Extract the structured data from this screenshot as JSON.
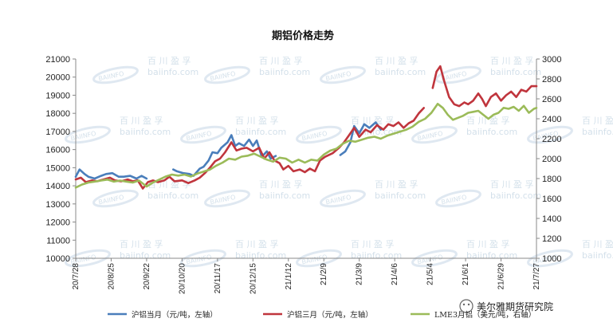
{
  "chart_data": {
    "type": "line",
    "title": "期铝价格走势",
    "y_left": {
      "ticks": [
        10000,
        11000,
        12000,
        13000,
        14000,
        15000,
        16000,
        17000,
        18000,
        19000,
        20000,
        21000
      ],
      "range": [
        10000,
        21000
      ]
    },
    "y_right": {
      "ticks": [
        1000,
        1200,
        1400,
        1600,
        1800,
        2000,
        2200,
        2400,
        2600,
        2800,
        3000
      ],
      "range": [
        1000,
        3000
      ]
    },
    "x_range": [
      "2020-07-28",
      "2021-07-27"
    ],
    "x_ticks": [
      {
        "date": "2020-07-28",
        "label": "20/7/28"
      },
      {
        "date": "2020-08-25",
        "label": "20/8/25"
      },
      {
        "date": "2020-09-22",
        "label": "20/9/22"
      },
      {
        "date": "2020-10-20",
        "label": "20/10/20"
      },
      {
        "date": "2020-11-17",
        "label": "20/11/17"
      },
      {
        "date": "2020-12-15",
        "label": "20/12/15"
      },
      {
        "date": "2021-01-12",
        "label": "21/1/12"
      },
      {
        "date": "2021-02-09",
        "label": "21/2/9"
      },
      {
        "date": "2021-03-09",
        "label": "21/3/9"
      },
      {
        "date": "2021-04-06",
        "label": "21/4/6"
      },
      {
        "date": "2021-05-04",
        "label": "21/5/4"
      },
      {
        "date": "2021-06-01",
        "label": "21/6/1"
      },
      {
        "date": "2021-06-29",
        "label": "21/6/29"
      },
      {
        "date": "2021-07-27",
        "label": "21/7/27"
      }
    ],
    "grid": false,
    "legend_position": "bottom",
    "series": [
      {
        "name": "沪铝当月（元/吨，左轴）",
        "axis": "left",
        "color": "#4a7ebb",
        "points": [
          [
            "2020-07-28",
            14500
          ],
          [
            "2020-07-31",
            14900
          ],
          [
            "2020-08-04",
            14650
          ],
          [
            "2020-08-07",
            14500
          ],
          [
            "2020-08-12",
            14400
          ],
          [
            "2020-08-17",
            14550
          ],
          [
            "2020-08-21",
            14650
          ],
          [
            "2020-08-26",
            14700
          ],
          [
            "2020-08-31",
            14500
          ],
          [
            "2020-09-04",
            14500
          ],
          [
            "2020-09-09",
            14550
          ],
          [
            "2020-09-14",
            14400
          ],
          [
            "2020-09-18",
            14550
          ],
          [
            "2020-09-22",
            14400
          ],
          null,
          [
            "2020-10-13",
            14900
          ],
          [
            "2020-10-16",
            14800
          ],
          [
            "2020-10-21",
            14700
          ],
          [
            "2020-10-26",
            14650
          ],
          [
            "2020-10-29",
            14550
          ],
          [
            "2020-11-03",
            14950
          ],
          [
            "2020-11-06",
            15050
          ],
          [
            "2020-11-10",
            15400
          ],
          [
            "2020-11-13",
            15850
          ],
          [
            "2020-11-17",
            15800
          ],
          [
            "2020-11-20",
            16100
          ],
          [
            "2020-11-25",
            16400
          ],
          [
            "2020-11-28",
            16800
          ],
          [
            "2020-12-01",
            16200
          ],
          [
            "2020-12-04",
            16350
          ],
          [
            "2020-12-08",
            16200
          ],
          [
            "2020-12-12",
            16550
          ],
          [
            "2020-12-15",
            16200
          ],
          [
            "2020-12-18",
            16500
          ],
          [
            "2020-12-22",
            15600
          ],
          [
            "2020-12-26",
            15900
          ],
          [
            "2020-12-29",
            15500
          ],
          [
            "2021-01-02",
            15650
          ],
          null,
          [
            "2021-02-22",
            15700
          ],
          [
            "2021-02-26",
            15900
          ],
          [
            "2021-03-02",
            16400
          ],
          [
            "2021-03-05",
            17300
          ],
          [
            "2021-03-09",
            16900
          ],
          [
            "2021-03-13",
            17400
          ],
          [
            "2021-03-17",
            17200
          ],
          [
            "2021-03-22",
            17500
          ],
          [
            "2021-03-26",
            17100
          ]
        ]
      },
      {
        "name": "沪铝三月（元/吨，左轴）",
        "axis": "left",
        "color": "#c0353d",
        "points": [
          [
            "2020-07-28",
            14350
          ],
          [
            "2020-08-01",
            14450
          ],
          [
            "2020-08-05",
            14200
          ],
          [
            "2020-08-10",
            14300
          ],
          [
            "2020-08-14",
            14250
          ],
          [
            "2020-08-19",
            14350
          ],
          [
            "2020-08-24",
            14450
          ],
          [
            "2020-08-28",
            14300
          ],
          [
            "2020-09-02",
            14250
          ],
          [
            "2020-09-07",
            14350
          ],
          [
            "2020-09-11",
            14250
          ],
          [
            "2020-09-15",
            14300
          ],
          [
            "2020-09-19",
            13850
          ],
          [
            "2020-09-23",
            14200
          ],
          [
            "2020-09-27",
            14300
          ],
          [
            "2020-10-01",
            14200
          ],
          [
            "2020-10-06",
            14300
          ],
          [
            "2020-10-10",
            14500
          ],
          [
            "2020-10-14",
            14250
          ],
          [
            "2020-10-20",
            14300
          ],
          [
            "2020-10-25",
            14150
          ],
          [
            "2020-10-30",
            14300
          ],
          [
            "2020-11-03",
            14450
          ],
          [
            "2020-11-07",
            14700
          ],
          [
            "2020-11-11",
            15000
          ],
          [
            "2020-11-15",
            15350
          ],
          [
            "2020-11-19",
            15500
          ],
          [
            "2020-11-23",
            15850
          ],
          [
            "2020-11-28",
            16400
          ],
          [
            "2020-12-02",
            15950
          ],
          [
            "2020-12-06",
            16050
          ],
          [
            "2020-12-10",
            16100
          ],
          [
            "2020-12-15",
            15900
          ],
          [
            "2020-12-20",
            16100
          ],
          [
            "2020-12-24",
            15500
          ],
          [
            "2020-12-28",
            15850
          ],
          [
            "2021-01-01",
            15400
          ],
          [
            "2021-01-05",
            15250
          ],
          [
            "2021-01-08",
            14900
          ],
          [
            "2021-01-12",
            15100
          ],
          [
            "2021-01-16",
            14800
          ],
          [
            "2021-01-21",
            14900
          ],
          [
            "2021-01-25",
            14750
          ],
          [
            "2021-01-29",
            14950
          ],
          [
            "2021-02-02",
            14800
          ],
          [
            "2021-02-06",
            15400
          ],
          [
            "2021-02-10",
            15600
          ],
          [
            "2021-02-16",
            15800
          ],
          [
            "2021-02-21",
            16100
          ],
          [
            "2021-02-25",
            16400
          ],
          [
            "2021-03-01",
            16800
          ],
          [
            "2021-03-05",
            17200
          ],
          [
            "2021-03-09",
            16700
          ],
          [
            "2021-03-14",
            17100
          ],
          [
            "2021-03-18",
            16950
          ],
          [
            "2021-03-23",
            17350
          ],
          [
            "2021-03-28",
            17100
          ],
          [
            "2021-04-01",
            17400
          ],
          [
            "2021-04-05",
            17300
          ],
          [
            "2021-04-09",
            17500
          ],
          [
            "2021-04-13",
            17200
          ],
          [
            "2021-04-17",
            17450
          ],
          [
            "2021-04-21",
            17600
          ],
          [
            "2021-04-25",
            18000
          ],
          [
            "2021-04-29",
            18300
          ],
          null,
          [
            "2021-05-06",
            19400
          ],
          [
            "2021-05-09",
            20300
          ],
          [
            "2021-05-12",
            20600
          ],
          [
            "2021-05-15",
            19800
          ],
          [
            "2021-05-19",
            18900
          ],
          [
            "2021-05-23",
            18500
          ],
          [
            "2021-05-27",
            18400
          ],
          [
            "2021-05-31",
            18600
          ],
          [
            "2021-06-03",
            18500
          ],
          [
            "2021-06-07",
            18700
          ],
          [
            "2021-06-11",
            19100
          ],
          [
            "2021-06-14",
            18800
          ],
          [
            "2021-06-17",
            18400
          ],
          [
            "2021-06-21",
            18900
          ],
          [
            "2021-06-25",
            19100
          ],
          [
            "2021-06-29",
            18700
          ],
          [
            "2021-07-03",
            19000
          ],
          [
            "2021-07-07",
            19200
          ],
          [
            "2021-07-11",
            18900
          ],
          [
            "2021-07-15",
            19300
          ],
          [
            "2021-07-19",
            19200
          ],
          [
            "2021-07-23",
            19500
          ],
          [
            "2021-07-27",
            19500
          ]
        ]
      },
      {
        "name": "LME3月铝（美元/吨，右轴）",
        "axis": "right",
        "color": "#9bbb59",
        "points": [
          [
            "2020-07-28",
            1710
          ],
          [
            "2020-08-02",
            1740
          ],
          [
            "2020-08-07",
            1760
          ],
          [
            "2020-08-12",
            1770
          ],
          [
            "2020-08-17",
            1780
          ],
          [
            "2020-08-22",
            1790
          ],
          [
            "2020-08-27",
            1770
          ],
          [
            "2020-09-01",
            1780
          ],
          [
            "2020-09-06",
            1770
          ],
          [
            "2020-09-11",
            1760
          ],
          [
            "2020-09-16",
            1780
          ],
          [
            "2020-09-22",
            1720
          ],
          [
            "2020-09-27",
            1760
          ],
          [
            "2020-10-02",
            1790
          ],
          [
            "2020-10-07",
            1820
          ],
          [
            "2020-10-12",
            1840
          ],
          [
            "2020-10-17",
            1830
          ],
          [
            "2020-10-22",
            1840
          ],
          [
            "2020-10-27",
            1820
          ],
          [
            "2020-11-01",
            1850
          ],
          [
            "2020-11-06",
            1870
          ],
          [
            "2020-11-11",
            1890
          ],
          [
            "2020-11-16",
            1930
          ],
          [
            "2020-11-21",
            1960
          ],
          [
            "2020-11-26",
            2000
          ],
          [
            "2020-12-01",
            1990
          ],
          [
            "2020-12-06",
            2020
          ],
          [
            "2020-12-11",
            2030
          ],
          [
            "2020-12-16",
            2050
          ],
          [
            "2020-12-21",
            2020
          ],
          [
            "2020-12-26",
            1990
          ],
          [
            "2020-12-31",
            1970
          ],
          [
            "2021-01-05",
            2010
          ],
          [
            "2021-01-10",
            2000
          ],
          [
            "2021-01-15",
            1960
          ],
          [
            "2021-01-20",
            1990
          ],
          [
            "2021-01-25",
            1960
          ],
          [
            "2021-01-30",
            1990
          ],
          [
            "2021-02-04",
            1980
          ],
          [
            "2021-02-09",
            2040
          ],
          [
            "2021-02-14",
            2080
          ],
          [
            "2021-02-19",
            2100
          ],
          [
            "2021-02-24",
            2150
          ],
          [
            "2021-03-01",
            2180
          ],
          [
            "2021-03-06",
            2170
          ],
          [
            "2021-03-11",
            2190
          ],
          [
            "2021-03-16",
            2210
          ],
          [
            "2021-03-21",
            2220
          ],
          [
            "2021-03-26",
            2200
          ],
          [
            "2021-03-31",
            2230
          ],
          [
            "2021-04-05",
            2250
          ],
          [
            "2021-04-10",
            2270
          ],
          [
            "2021-04-15",
            2290
          ],
          [
            "2021-04-20",
            2320
          ],
          [
            "2021-04-25",
            2370
          ],
          [
            "2021-04-30",
            2400
          ],
          [
            "2021-05-05",
            2460
          ],
          [
            "2021-05-10",
            2550
          ],
          [
            "2021-05-14",
            2510
          ],
          [
            "2021-05-18",
            2440
          ],
          [
            "2021-05-22",
            2390
          ],
          [
            "2021-05-26",
            2410
          ],
          [
            "2021-05-30",
            2430
          ],
          [
            "2021-06-03",
            2460
          ],
          [
            "2021-06-07",
            2470
          ],
          [
            "2021-06-11",
            2480
          ],
          [
            "2021-06-15",
            2440
          ],
          [
            "2021-06-19",
            2400
          ],
          [
            "2021-06-23",
            2440
          ],
          [
            "2021-06-27",
            2460
          ],
          [
            "2021-07-01",
            2510
          ],
          [
            "2021-07-05",
            2500
          ],
          [
            "2021-07-09",
            2520
          ],
          [
            "2021-07-13",
            2480
          ],
          [
            "2021-07-17",
            2530
          ],
          [
            "2021-07-21",
            2460
          ],
          [
            "2021-07-25",
            2500
          ],
          [
            "2021-07-27",
            2510
          ]
        ]
      }
    ]
  },
  "watermark": {
    "cn": "百 川 盈 孚",
    "en": "baiinfo.com",
    "logo": "BAIINFO"
  },
  "brand": {
    "text": "美尔雅期货研究院"
  }
}
